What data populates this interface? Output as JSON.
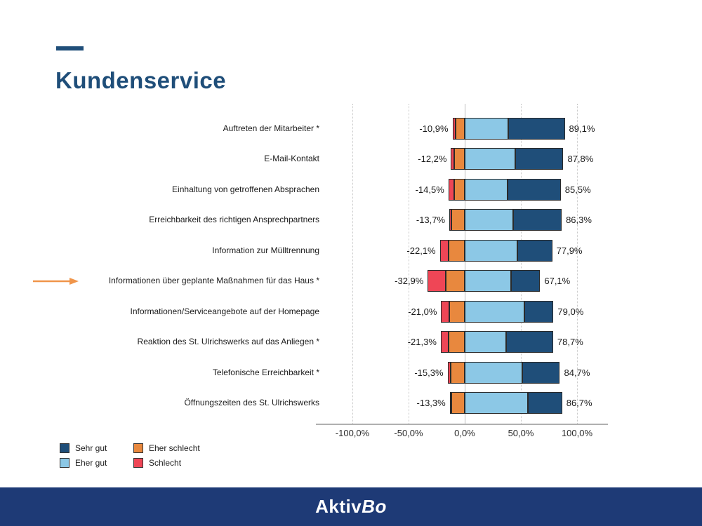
{
  "slide": {
    "title": "Kundenservice"
  },
  "footer": {
    "logo_regular": "Aktiv",
    "logo_italic": "Bo"
  },
  "colors": {
    "title": "#1f4e79",
    "footer_bg": "#1e3a76",
    "arrow": "#f0954a",
    "sehr_gut": "#1f4e79",
    "eher_gut": "#8cc8e6",
    "eher_schlecht": "#e8883e",
    "schlecht": "#ef4656"
  },
  "legend": {
    "items": [
      {
        "key": "sehr_gut",
        "label": "Sehr gut"
      },
      {
        "key": "eher_schlecht",
        "label": "Eher schlecht"
      },
      {
        "key": "eher_gut",
        "label": "Eher gut"
      },
      {
        "key": "schlecht",
        "label": "Schlecht"
      }
    ]
  },
  "chart_data": {
    "type": "bar",
    "subtype": "diverging-stacked-horizontal",
    "unit": "%",
    "xlim": [
      -100,
      100
    ],
    "x_tick_values": [
      -100,
      -50,
      0,
      50,
      100
    ],
    "x_ticks": [
      "-100,0%",
      "-50,0%",
      "0,0%",
      "50,0%",
      "100,0%"
    ],
    "grid": "vertical-dotted",
    "legend_position": "bottom-left",
    "series_order": [
      "schlecht",
      "eher_schlecht",
      "eher_gut",
      "sehr_gut"
    ],
    "annotation": {
      "arrow_points_to_row": 5
    },
    "rows": [
      {
        "category": "Auftreten der Mitarbeiter *",
        "negative_label": "-10,9%",
        "positive_label": "89,1%",
        "negative_total": -10.9,
        "positive_total": 89.1,
        "schlecht": 3.0,
        "eher_schlecht": 7.9,
        "eher_gut": 39.0,
        "sehr_gut": 50.1
      },
      {
        "category": "E-Mail-Kontakt",
        "negative_label": "-12,2%",
        "positive_label": "87,8%",
        "negative_total": -12.2,
        "positive_total": 87.8,
        "schlecht": 3.0,
        "eher_schlecht": 9.2,
        "eher_gut": 45.0,
        "sehr_gut": 42.8
      },
      {
        "category": "Einhaltung von getroffenen Absprachen",
        "negative_label": "-14,5%",
        "positive_label": "85,5%",
        "negative_total": -14.5,
        "positive_total": 85.5,
        "schlecht": 5.0,
        "eher_schlecht": 9.5,
        "eher_gut": 38.0,
        "sehr_gut": 47.5
      },
      {
        "category": "Erreichbarkeit des richtigen Ansprechpartners",
        "negative_label": "-13,7%",
        "positive_label": "86,3%",
        "negative_total": -13.7,
        "positive_total": 86.3,
        "schlecht": 2.0,
        "eher_schlecht": 11.7,
        "eher_gut": 43.0,
        "sehr_gut": 43.3
      },
      {
        "category": "Information zur Mülltrennung",
        "negative_label": "-22,1%",
        "positive_label": "77,9%",
        "negative_total": -22.1,
        "positive_total": 77.9,
        "schlecht": 8.0,
        "eher_schlecht": 14.1,
        "eher_gut": 47.0,
        "sehr_gut": 30.9
      },
      {
        "category": "Informationen über geplante Maßnahmen für das Haus *",
        "negative_label": "-32,9%",
        "positive_label": "67,1%",
        "negative_total": -32.9,
        "positive_total": 67.1,
        "schlecht": 16.0,
        "eher_schlecht": 16.9,
        "eher_gut": 41.0,
        "sehr_gut": 26.1
      },
      {
        "category": "Informationen/Serviceangebote auf der Homepage",
        "negative_label": "-21,0%",
        "positive_label": "79,0%",
        "negative_total": -21.0,
        "positive_total": 79.0,
        "schlecht": 7.0,
        "eher_schlecht": 14.0,
        "eher_gut": 53.0,
        "sehr_gut": 26.0
      },
      {
        "category": "Reaktion des St. Ulrichswerks auf das Anliegen *",
        "negative_label": "-21,3%",
        "positive_label": "78,7%",
        "negative_total": -21.3,
        "positive_total": 78.7,
        "schlecht": 7.0,
        "eher_schlecht": 14.3,
        "eher_gut": 37.0,
        "sehr_gut": 41.7
      },
      {
        "category": "Telefonische Erreichbarkeit *",
        "negative_label": "-15,3%",
        "positive_label": "84,7%",
        "negative_total": -15.3,
        "positive_total": 84.7,
        "schlecht": 2.5,
        "eher_schlecht": 12.8,
        "eher_gut": 51.0,
        "sehr_gut": 33.7
      },
      {
        "category": "Öffnungszeiten des St. Ulrichswerks",
        "negative_label": "-13,3%",
        "positive_label": "86,7%",
        "negative_total": -13.3,
        "positive_total": 86.7,
        "schlecht": 1.5,
        "eher_schlecht": 11.8,
        "eher_gut": 56.0,
        "sehr_gut": 30.7
      }
    ]
  }
}
